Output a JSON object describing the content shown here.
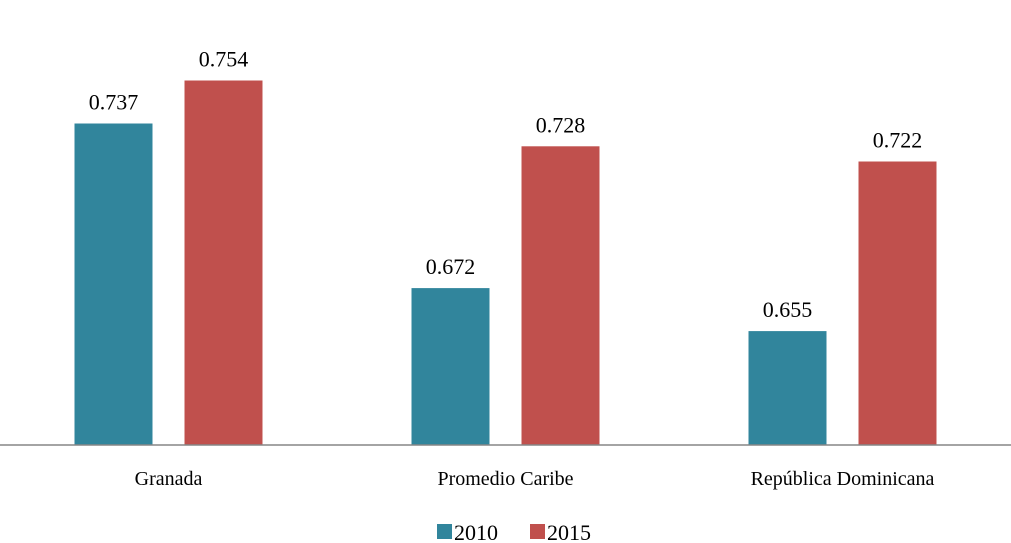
{
  "chart_data": {
    "type": "bar",
    "categories": [
      "Granada",
      "Promedio Caribe",
      "República Dominicana"
    ],
    "series": [
      {
        "name": "2010",
        "values": [
          0.737,
          0.672,
          0.655
        ],
        "labels": [
          "0.737",
          "0.672",
          "0.655"
        ],
        "color": "#31859C"
      },
      {
        "name": "2015",
        "values": [
          0.754,
          0.728,
          0.722
        ],
        "labels": [
          "0.754",
          "0.728",
          "0.722"
        ],
        "color": "#C0504D"
      }
    ],
    "ylim": [
      0.61,
      0.77
    ],
    "grid": false,
    "legend": "bottom-center",
    "axis_color": "#868686"
  }
}
